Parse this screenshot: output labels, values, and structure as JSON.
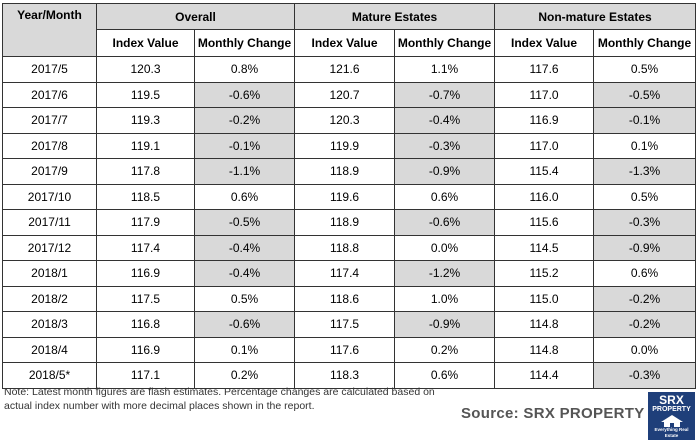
{
  "table": {
    "header": {
      "year_month": "Year/Month",
      "groups": [
        "Overall",
        "Mature Estates",
        "Non-mature Estates"
      ],
      "index_label": "Index Value",
      "change_label": "Monthly Change"
    },
    "rows": [
      {
        "period": "2017/5",
        "cells": [
          [
            "120.3",
            "0.8%",
            false
          ],
          [
            "121.6",
            "1.1%",
            false
          ],
          [
            "117.6",
            "0.5%",
            false
          ]
        ]
      },
      {
        "period": "2017/6",
        "cells": [
          [
            "119.5",
            "-0.6%",
            true
          ],
          [
            "120.7",
            "-0.7%",
            true
          ],
          [
            "117.0",
            "-0.5%",
            true
          ]
        ]
      },
      {
        "period": "2017/7",
        "cells": [
          [
            "119.3",
            "-0.2%",
            true
          ],
          [
            "120.3",
            "-0.4%",
            true
          ],
          [
            "116.9",
            "-0.1%",
            true
          ]
        ]
      },
      {
        "period": "2017/8",
        "cells": [
          [
            "119.1",
            "-0.1%",
            true
          ],
          [
            "119.9",
            "-0.3%",
            true
          ],
          [
            "117.0",
            "0.1%",
            false
          ]
        ]
      },
      {
        "period": "2017/9",
        "cells": [
          [
            "117.8",
            "-1.1%",
            true
          ],
          [
            "118.9",
            "-0.9%",
            true
          ],
          [
            "115.4",
            "-1.3%",
            true
          ]
        ]
      },
      {
        "period": "2017/10",
        "cells": [
          [
            "118.5",
            "0.6%",
            false
          ],
          [
            "119.6",
            "0.6%",
            false
          ],
          [
            "116.0",
            "0.5%",
            false
          ]
        ]
      },
      {
        "period": "2017/11",
        "cells": [
          [
            "117.9",
            "-0.5%",
            true
          ],
          [
            "118.9",
            "-0.6%",
            true
          ],
          [
            "115.6",
            "-0.3%",
            true
          ]
        ]
      },
      {
        "period": "2017/12",
        "cells": [
          [
            "117.4",
            "-0.4%",
            true
          ],
          [
            "118.8",
            "0.0%",
            false
          ],
          [
            "114.5",
            "-0.9%",
            true
          ]
        ]
      },
      {
        "period": "2018/1",
        "cells": [
          [
            "116.9",
            "-0.4%",
            true
          ],
          [
            "117.4",
            "-1.2%",
            true
          ],
          [
            "115.2",
            "0.6%",
            false
          ]
        ]
      },
      {
        "period": "2018/2",
        "cells": [
          [
            "117.5",
            "0.5%",
            false
          ],
          [
            "118.6",
            "1.0%",
            false
          ],
          [
            "115.0",
            "-0.2%",
            true
          ]
        ]
      },
      {
        "period": "2018/3",
        "cells": [
          [
            "116.8",
            "-0.6%",
            true
          ],
          [
            "117.5",
            "-0.9%",
            true
          ],
          [
            "114.8",
            "-0.2%",
            true
          ]
        ]
      },
      {
        "period": "2018/4",
        "cells": [
          [
            "116.9",
            "0.1%",
            false
          ],
          [
            "117.6",
            "0.2%",
            false
          ],
          [
            "114.8",
            "0.0%",
            false
          ]
        ]
      },
      {
        "period": "2018/5*",
        "cells": [
          [
            "117.1",
            "0.2%",
            false
          ],
          [
            "118.3",
            "0.6%",
            false
          ],
          [
            "114.4",
            "-0.3%",
            true
          ]
        ]
      }
    ]
  },
  "shade_color": "#d9d9d9",
  "note": "Note: Latest month figures are flash estimates. Percentage changes are calculated based on actual index number with more decimal places shown in the report.",
  "source": "Source:  SRX PROPERTY",
  "logo": {
    "line1": "SRX",
    "line2": "PROPERTY",
    "tagline": "Everything Real Estate",
    "color": "#1f3f7a",
    "icon": "house-icon"
  }
}
